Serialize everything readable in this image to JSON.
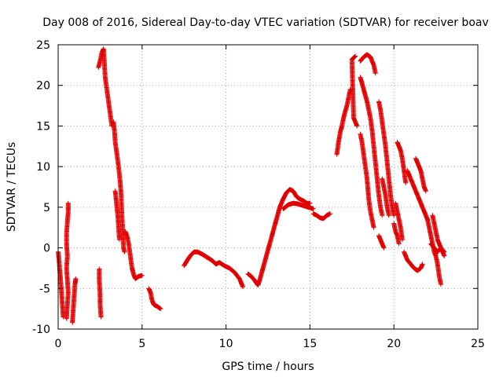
{
  "chart_data": {
    "type": "scatter",
    "title": "Day 008 of 2016, Sidereal Day-to-day VTEC variation (SDTVAR) for receiver boav",
    "xlabel": "GPS time / hours",
    "ylabel": "SDTVAR / TECUs",
    "xlim": [
      0,
      25
    ],
    "ylim": [
      -10,
      25
    ],
    "xticks": [
      0,
      5,
      10,
      15,
      20,
      25
    ],
    "yticks": [
      -10,
      -5,
      0,
      5,
      10,
      15,
      20,
      25
    ],
    "grid": true,
    "marker": "+",
    "color": "#e00000",
    "segments": [
      [
        [
          0.0,
          -0.5
        ],
        [
          0.05,
          -1.5
        ],
        [
          0.1,
          -2.8
        ],
        [
          0.15,
          -4.0
        ],
        [
          0.2,
          -5.5
        ],
        [
          0.25,
          -7.0
        ],
        [
          0.3,
          -8.5
        ]
      ],
      [
        [
          0.5,
          -8.7
        ],
        [
          0.55,
          -7.0
        ],
        [
          0.6,
          -5.5
        ],
        [
          0.55,
          -4.0
        ],
        [
          0.5,
          -2.5
        ],
        [
          0.55,
          -1.0
        ],
        [
          0.5,
          0.5
        ],
        [
          0.5,
          1.8
        ],
        [
          0.55,
          3.2
        ],
        [
          0.6,
          4.4
        ],
        [
          0.6,
          5.5
        ]
      ],
      [
        [
          0.85,
          -9.2
        ],
        [
          0.9,
          -7.5
        ],
        [
          0.95,
          -6.0
        ],
        [
          1.0,
          -4.5
        ],
        [
          1.05,
          -3.8
        ]
      ],
      [
        [
          2.45,
          -2.6
        ],
        [
          2.45,
          -4.0
        ],
        [
          2.5,
          -5.8
        ],
        [
          2.5,
          -7.0
        ],
        [
          2.55,
          -8.5
        ]
      ],
      [
        [
          2.4,
          22.2
        ],
        [
          2.5,
          23.0
        ],
        [
          2.6,
          24.0
        ],
        [
          2.7,
          24.5
        ],
        [
          2.75,
          23.0
        ],
        [
          2.8,
          21.0
        ],
        [
          2.9,
          19.5
        ],
        [
          3.0,
          18.0
        ],
        [
          3.1,
          16.5
        ],
        [
          3.2,
          15.0
        ]
      ],
      [
        [
          3.3,
          15.5
        ],
        [
          3.35,
          14.5
        ],
        [
          3.4,
          13.0
        ],
        [
          3.5,
          11.5
        ],
        [
          3.6,
          10.0
        ],
        [
          3.7,
          8.0
        ],
        [
          3.75,
          6.5
        ],
        [
          3.8,
          4.0
        ],
        [
          3.85,
          2.0
        ],
        [
          3.9,
          0.0
        ],
        [
          3.95,
          -0.5
        ]
      ],
      [
        [
          3.4,
          7.0
        ],
        [
          3.45,
          6.0
        ],
        [
          3.5,
          5.0
        ],
        [
          3.55,
          4.0
        ],
        [
          3.6,
          2.5
        ],
        [
          3.65,
          1.0
        ]
      ],
      [
        [
          4.0,
          2.0
        ],
        [
          4.1,
          1.5
        ],
        [
          4.2,
          0.5
        ],
        [
          4.3,
          -1.0
        ],
        [
          4.4,
          -2.5
        ],
        [
          4.5,
          -3.3
        ],
        [
          4.6,
          -3.8
        ],
        [
          4.8,
          -3.5
        ],
        [
          5.0,
          -3.4
        ]
      ],
      [
        [
          5.4,
          -5.0
        ],
        [
          5.5,
          -5.5
        ],
        [
          5.6,
          -6.5
        ],
        [
          5.7,
          -7.0
        ],
        [
          5.9,
          -7.2
        ],
        [
          6.1,
          -7.5
        ]
      ],
      [
        [
          7.5,
          -2.2
        ],
        [
          7.7,
          -1.5
        ],
        [
          7.9,
          -0.9
        ],
        [
          8.1,
          -0.5
        ],
        [
          8.3,
          -0.5
        ],
        [
          8.6,
          -0.8
        ],
        [
          8.9,
          -1.2
        ],
        [
          9.2,
          -1.6
        ],
        [
          9.4,
          -2.0
        ]
      ],
      [
        [
          9.4,
          -2.0
        ],
        [
          9.6,
          -1.8
        ],
        [
          9.9,
          -2.2
        ],
        [
          10.2,
          -2.5
        ],
        [
          10.5,
          -3.0
        ],
        [
          10.8,
          -3.8
        ],
        [
          11.0,
          -4.8
        ]
      ],
      [
        [
          11.3,
          -3.2
        ],
        [
          11.5,
          -3.5
        ],
        [
          11.7,
          -4.0
        ],
        [
          11.9,
          -4.6
        ],
        [
          12.0,
          -4.0
        ],
        [
          12.2,
          -2.5
        ],
        [
          12.4,
          -1.0
        ],
        [
          12.6,
          0.5
        ],
        [
          12.8,
          2.0
        ],
        [
          13.0,
          3.5
        ]
      ],
      [
        [
          13.0,
          3.5
        ],
        [
          13.2,
          5.0
        ],
        [
          13.4,
          6.0
        ],
        [
          13.6,
          6.8
        ],
        [
          13.8,
          7.2
        ],
        [
          14.0,
          7.0
        ],
        [
          14.2,
          6.3
        ],
        [
          14.4,
          6.0
        ],
        [
          14.6,
          5.8
        ],
        [
          14.8,
          5.5
        ],
        [
          15.0,
          5.5
        ]
      ],
      [
        [
          13.4,
          4.8
        ],
        [
          13.7,
          5.3
        ],
        [
          14.0,
          5.5
        ],
        [
          14.3,
          5.4
        ],
        [
          14.6,
          5.2
        ],
        [
          14.9,
          5.0
        ],
        [
          15.2,
          4.8
        ]
      ],
      [
        [
          15.2,
          4.2
        ],
        [
          15.4,
          4.0
        ],
        [
          15.6,
          3.7
        ],
        [
          15.8,
          3.6
        ],
        [
          16.0,
          4.0
        ],
        [
          16.2,
          4.2
        ]
      ],
      [
        [
          16.6,
          11.5
        ],
        [
          16.7,
          13.0
        ],
        [
          16.8,
          14.2
        ],
        [
          16.9,
          15.0
        ],
        [
          17.0,
          16.0
        ],
        [
          17.1,
          16.8
        ],
        [
          17.2,
          17.5
        ],
        [
          17.3,
          18.5
        ],
        [
          17.4,
          19.5
        ]
      ],
      [
        [
          17.8,
          15.0
        ],
        [
          17.6,
          16.0
        ],
        [
          17.5,
          23.2
        ],
        [
          17.7,
          23.6
        ]
      ],
      [
        [
          18.0,
          23.0
        ],
        [
          18.2,
          23.5
        ],
        [
          18.4,
          23.8
        ],
        [
          18.6,
          23.5
        ],
        [
          18.8,
          22.5
        ],
        [
          18.9,
          21.5
        ]
      ],
      [
        [
          18.0,
          14.0
        ],
        [
          18.1,
          13.0
        ],
        [
          18.2,
          11.5
        ],
        [
          18.3,
          10.0
        ],
        [
          18.4,
          8.5
        ],
        [
          18.5,
          6.0
        ],
        [
          18.6,
          4.5
        ],
        [
          18.7,
          3.5
        ],
        [
          18.8,
          2.5
        ]
      ],
      [
        [
          18.0,
          21.0
        ],
        [
          18.2,
          19.5
        ],
        [
          18.4,
          18.0
        ],
        [
          18.5,
          17.0
        ],
        [
          18.6,
          16.0
        ],
        [
          18.7,
          14.5
        ],
        [
          18.8,
          12.5
        ],
        [
          18.9,
          10.5
        ],
        [
          19.0,
          8.5
        ],
        [
          19.1,
          6.5
        ],
        [
          19.2,
          5.0
        ],
        [
          19.3,
          4.0
        ]
      ],
      [
        [
          19.1,
          1.5
        ],
        [
          19.2,
          1.0
        ],
        [
          19.3,
          0.5
        ],
        [
          19.4,
          0.0
        ]
      ],
      [
        [
          19.1,
          18.0
        ],
        [
          19.2,
          17.0
        ],
        [
          19.3,
          15.5
        ],
        [
          19.4,
          14.0
        ],
        [
          19.5,
          12.5
        ],
        [
          19.6,
          10.5
        ],
        [
          19.7,
          8.5
        ],
        [
          19.8,
          6.5
        ],
        [
          19.9,
          5.0
        ],
        [
          20.0,
          4.0
        ]
      ],
      [
        [
          19.3,
          8.5
        ],
        [
          19.4,
          7.5
        ],
        [
          19.5,
          6.5
        ],
        [
          19.6,
          5.0
        ],
        [
          19.7,
          4.0
        ]
      ],
      [
        [
          20.0,
          3.0
        ],
        [
          20.1,
          2.0
        ],
        [
          20.2,
          1.5
        ],
        [
          20.3,
          0.5
        ]
      ],
      [
        [
          20.1,
          5.5
        ],
        [
          20.2,
          4.5
        ],
        [
          20.3,
          3.5
        ],
        [
          20.4,
          2.5
        ],
        [
          20.5,
          1.0
        ]
      ],
      [
        [
          20.2,
          13.0
        ],
        [
          20.3,
          12.5
        ],
        [
          20.4,
          12.0
        ],
        [
          20.5,
          11.0
        ],
        [
          20.6,
          9.5
        ],
        [
          20.7,
          8.0
        ]
      ],
      [
        [
          20.6,
          -0.5
        ],
        [
          20.8,
          -1.5
        ],
        [
          21.0,
          -2.0
        ],
        [
          21.2,
          -2.5
        ],
        [
          21.4,
          -2.8
        ],
        [
          21.6,
          -2.5
        ],
        [
          21.7,
          -2.0
        ]
      ],
      [
        [
          20.8,
          9.5
        ],
        [
          21.0,
          8.5
        ],
        [
          21.2,
          7.5
        ],
        [
          21.4,
          6.5
        ],
        [
          21.6,
          5.5
        ],
        [
          21.8,
          4.5
        ],
        [
          22.0,
          3.5
        ]
      ],
      [
        [
          21.3,
          11.0
        ],
        [
          21.4,
          10.5
        ],
        [
          21.5,
          10.0
        ],
        [
          21.6,
          9.5
        ],
        [
          21.7,
          8.5
        ],
        [
          21.8,
          7.5
        ],
        [
          21.9,
          7.0
        ]
      ],
      [
        [
          22.0,
          3.5
        ],
        [
          22.1,
          2.5
        ],
        [
          22.2,
          1.5
        ],
        [
          22.3,
          0.5
        ],
        [
          22.4,
          -0.5
        ],
        [
          22.5,
          -1.0
        ],
        [
          22.6,
          -2.0
        ],
        [
          22.7,
          -3.5
        ],
        [
          22.8,
          -4.5
        ]
      ],
      [
        [
          22.3,
          4.0
        ],
        [
          22.4,
          3.0
        ],
        [
          22.5,
          2.0
        ],
        [
          22.6,
          1.0
        ],
        [
          22.7,
          0.5
        ],
        [
          22.8,
          0.0
        ],
        [
          22.9,
          -0.5
        ],
        [
          23.0,
          -1.0
        ]
      ],
      [
        [
          22.2,
          0.5
        ],
        [
          22.4,
          0.0
        ],
        [
          22.6,
          -0.5
        ],
        [
          22.8,
          0.0
        ],
        [
          23.0,
          -0.5
        ]
      ]
    ]
  }
}
